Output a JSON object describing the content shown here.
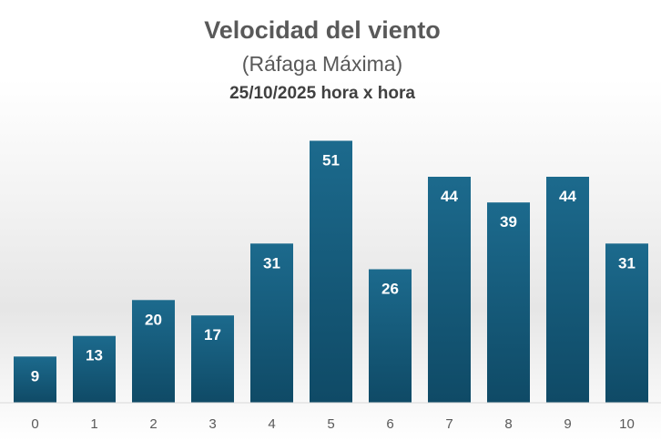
{
  "chart_data": {
    "type": "bar",
    "title": "Velocidad del viento",
    "subtitle": "(Ráfaga Máxima)",
    "subtitle2": "25/10/2025 hora x hora",
    "categories": [
      "0",
      "1",
      "2",
      "3",
      "4",
      "5",
      "6",
      "7",
      "8",
      "9",
      "10"
    ],
    "values": [
      9,
      13,
      20,
      17,
      31,
      51,
      26,
      44,
      39,
      44,
      31
    ],
    "xlabel": "",
    "ylabel": "",
    "ylim": [
      0,
      55
    ],
    "grid": false,
    "legend": "none",
    "colors": {
      "bar_top": "#1c6a8d",
      "bar_bottom": "#0f4a66",
      "bar_label": "#ffffff",
      "axis": "#d9d9d9"
    }
  }
}
